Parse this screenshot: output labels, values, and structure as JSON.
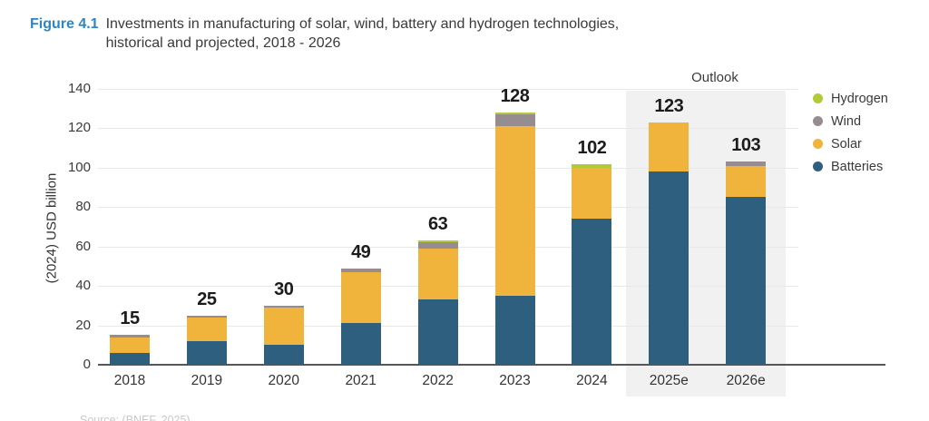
{
  "figure": {
    "label": "Figure 4.1",
    "title_line1": "Investments in manufacturing of solar, wind, battery and hydrogen technologies,",
    "title_line2": "historical and projected, 2018 - 2026"
  },
  "outlook_label": "Outlook",
  "source_note": "Source: (BNEF, 2025)",
  "colors": {
    "batteries": "#2e5f7f",
    "solar": "#f0b43d",
    "wind": "#978d90",
    "hydrogen": "#b3c938",
    "figure_label_blue": "#3084c2",
    "outlook_band": "#f1f1f1",
    "gridline": "#e8e8e8",
    "axis_line": "#55565a"
  },
  "chart_data": {
    "type": "bar",
    "stacked": true,
    "title": "Investments in manufacturing of solar, wind, battery and hydrogen technologies, historical and projected, 2018 - 2026",
    "xlabel": "",
    "ylabel": "(2024) USD billion",
    "ylim": [
      0,
      140
    ],
    "yticks": [
      0,
      20,
      40,
      60,
      80,
      100,
      120,
      140
    ],
    "grid": true,
    "legend_position": "right",
    "categories": [
      "2018",
      "2019",
      "2020",
      "2021",
      "2022",
      "2023",
      "2024",
      "2025e",
      "2026e"
    ],
    "totals": [
      15,
      25,
      30,
      49,
      63,
      128,
      102,
      123,
      103
    ],
    "series": [
      {
        "name": "Batteries",
        "color": "#2e5f7f",
        "values": [
          6,
          12,
          10,
          21,
          33,
          35,
          74,
          98,
          85
        ]
      },
      {
        "name": "Solar",
        "color": "#f0b43d",
        "values": [
          8,
          12,
          19,
          26,
          26,
          86,
          26,
          25,
          16
        ]
      },
      {
        "name": "Wind",
        "color": "#978d90",
        "values": [
          1,
          1,
          1,
          2,
          3,
          6,
          0,
          0,
          2
        ]
      },
      {
        "name": "Hydrogen",
        "color": "#b3c938",
        "values": [
          0,
          0,
          0,
          0,
          1,
          1,
          2,
          0,
          0
        ]
      }
    ],
    "legend": [
      "Hydrogen",
      "Wind",
      "Solar",
      "Batteries"
    ],
    "outlook_categories": [
      "2025e",
      "2026e"
    ]
  }
}
